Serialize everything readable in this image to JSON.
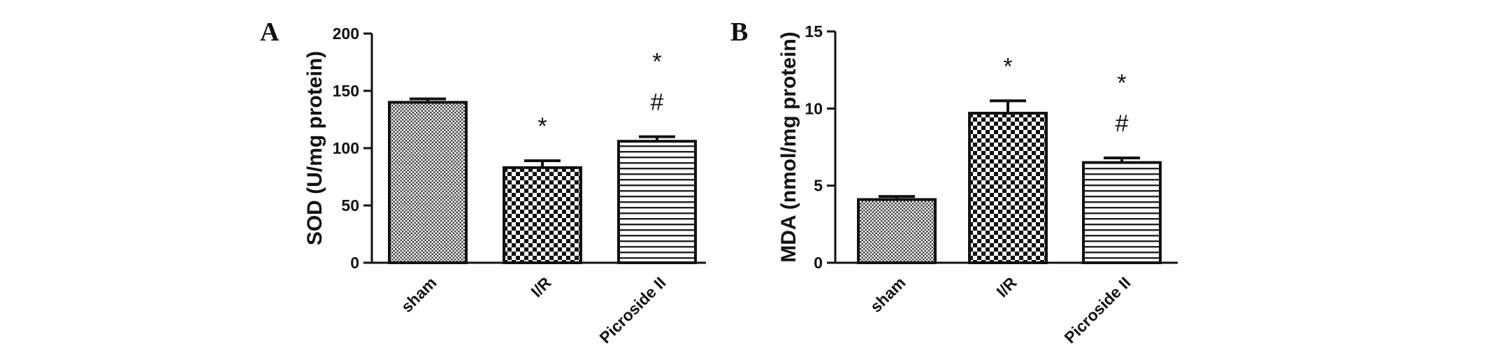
{
  "chart_data": [
    {
      "type": "bar",
      "panel_label": "A",
      "categories": [
        "sham",
        "I/R",
        "Picroside II"
      ],
      "values": [
        140,
        83,
        106
      ],
      "errors": [
        3,
        6,
        4
      ],
      "annotations": [
        [],
        [
          "*"
        ],
        [
          "*",
          "#"
        ]
      ],
      "patterns": [
        "fine-dots",
        "checker",
        "hlines"
      ],
      "ylabel": "SOD (U/mg protein)",
      "xlabel": "",
      "ylim": [
        0,
        200
      ],
      "yticks": [
        0,
        50,
        100,
        150,
        200
      ],
      "grid": false,
      "legend": "none"
    },
    {
      "type": "bar",
      "panel_label": "B",
      "categories": [
        "sham",
        "I/R",
        "Picroside II"
      ],
      "values": [
        4.1,
        9.7,
        6.5
      ],
      "errors": [
        0.2,
        0.8,
        0.3
      ],
      "annotations": [
        [],
        [
          "*"
        ],
        [
          "*",
          "#"
        ]
      ],
      "patterns": [
        "fine-dots",
        "checker",
        "hlines"
      ],
      "ylabel": "MDA (nmol/mg protein)",
      "xlabel": "",
      "ylim": [
        0,
        15
      ],
      "yticks": [
        0,
        5,
        10,
        15
      ],
      "grid": false,
      "legend": "none"
    }
  ]
}
